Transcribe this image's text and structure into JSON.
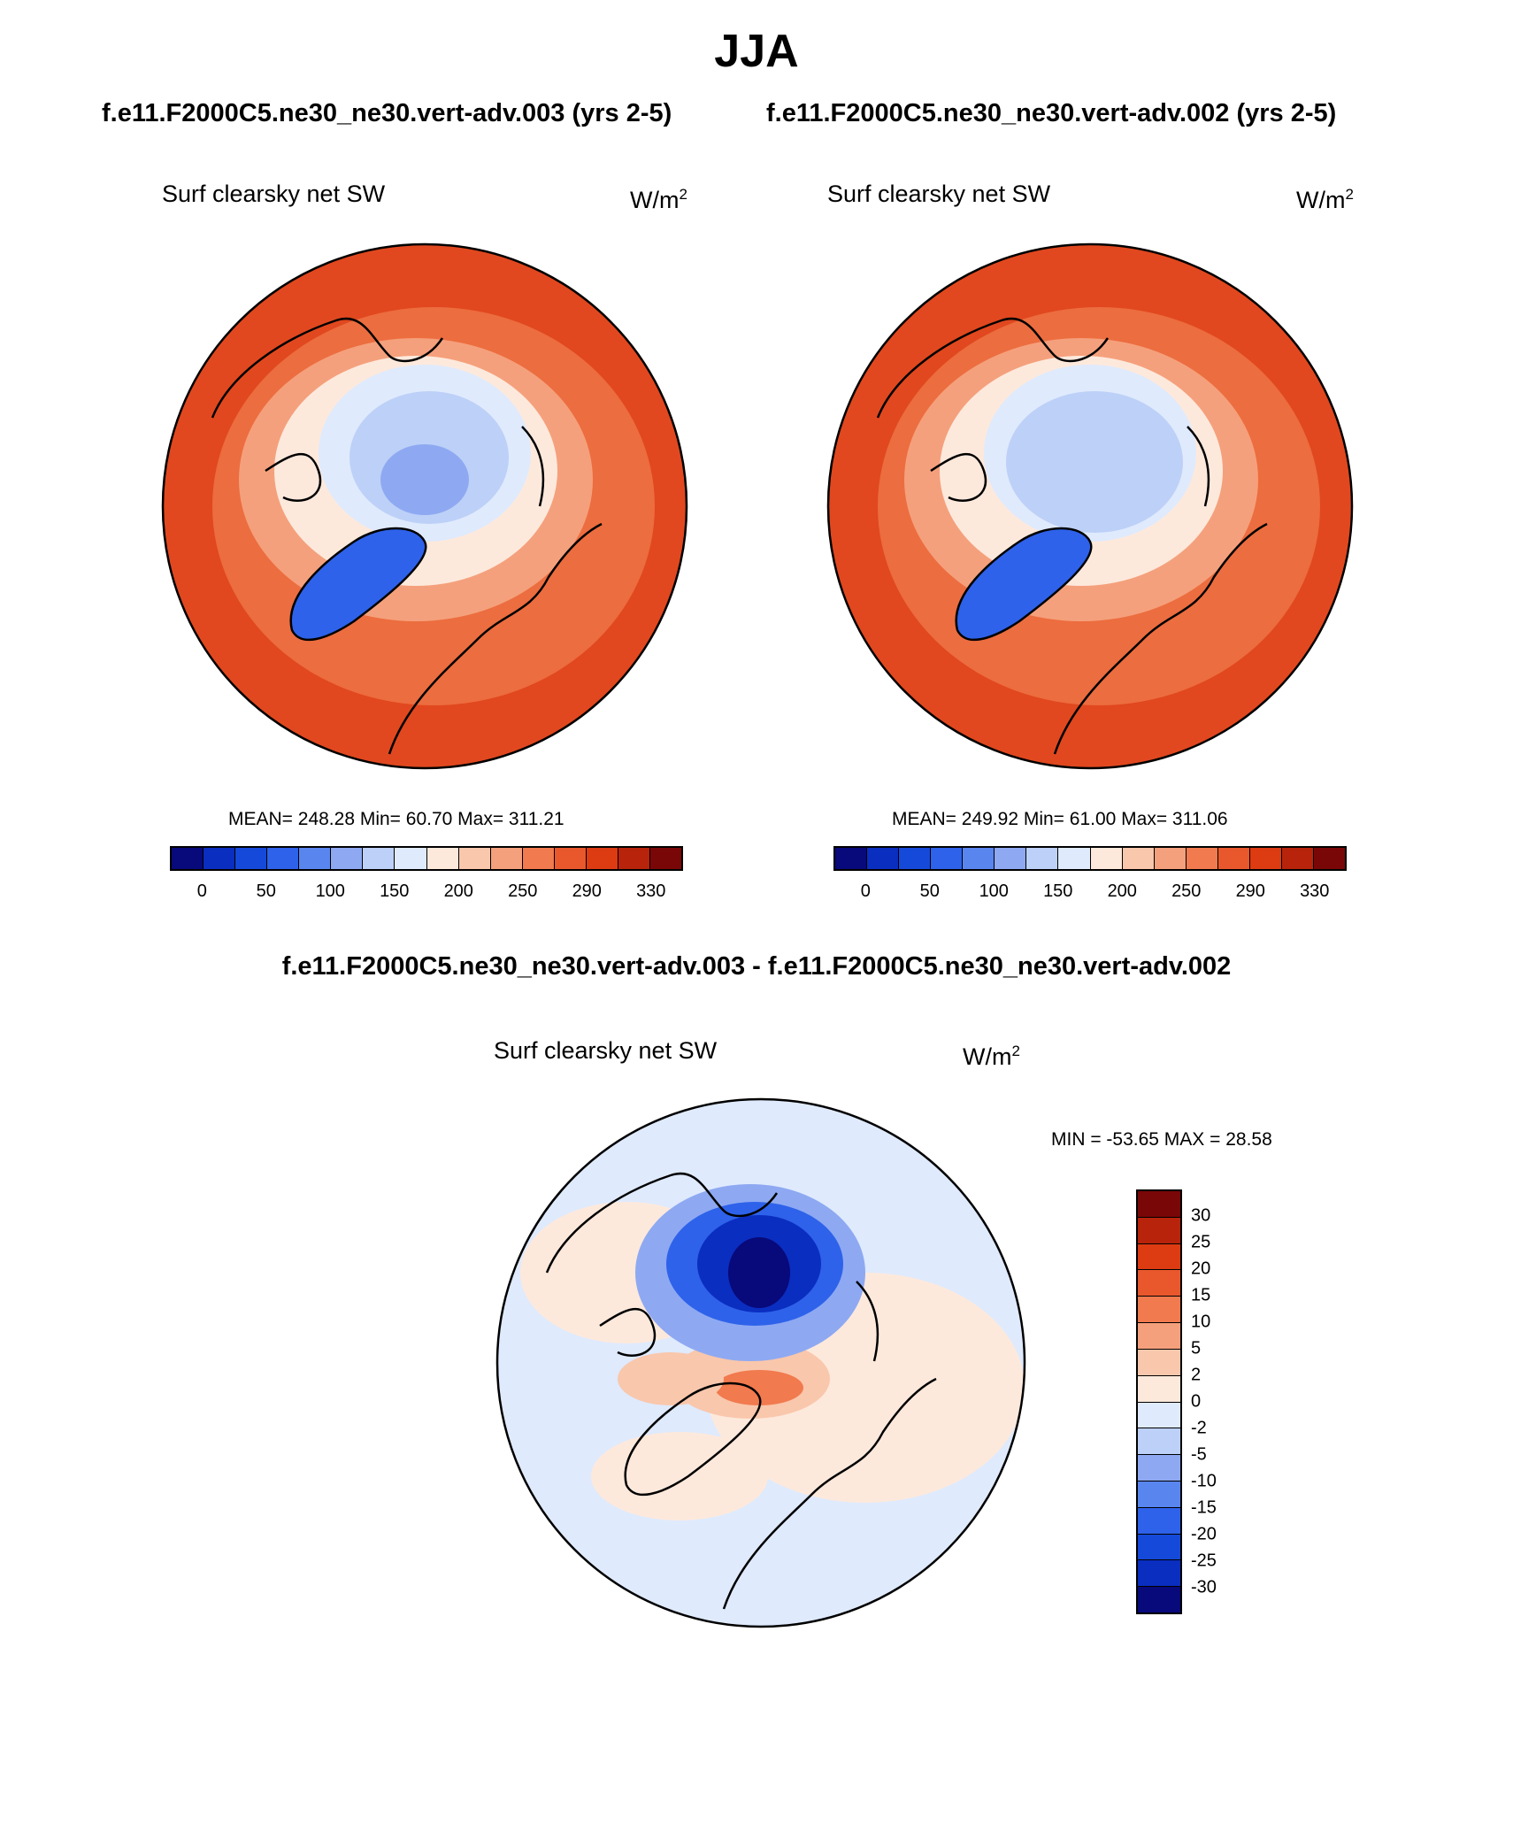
{
  "page": {
    "title": "JJA",
    "case_a_title": "f.e11.F2000C5.ne30_ne30.vert-adv.003 (yrs 2-5)",
    "case_b_title": "f.e11.F2000C5.ne30_ne30.vert-adv.002 (yrs 2-5)",
    "diff_title": "f.e11.F2000C5.ne30_ne30.vert-adv.003 - f.e11.F2000C5.ne30_ne30.vert-adv.002"
  },
  "panels": {
    "a": {
      "variable": "Surf clearsky net SW",
      "unit_base": "W/m",
      "unit_exp": "2",
      "stats": "MEAN= 248.28  Min=  60.70  Max= 311.21"
    },
    "b": {
      "variable": "Surf clearsky net SW",
      "unit_base": "W/m",
      "unit_exp": "2",
      "stats": "MEAN= 249.92  Min=  61.00  Max= 311.06"
    },
    "diff": {
      "variable": "Surf clearsky net SW",
      "unit_base": "W/m",
      "unit_exp": "2",
      "stats": "MIN = -53.65 MAX =  28.58"
    }
  },
  "colorbars": {
    "field_colors": [
      "#08097a",
      "#0a2ec0",
      "#1549da",
      "#2e62ea",
      "#5985ef",
      "#8ea9f2",
      "#bdd0f7",
      "#dfeafd",
      "#fde9dc",
      "#f9c7ac",
      "#f5a07c",
      "#f17a4e",
      "#e8582c",
      "#dd3b12",
      "#b8240b",
      "#7a0707"
    ],
    "field_ticks": [
      "0",
      "50",
      "100",
      "150",
      "200",
      "250",
      "290",
      "330"
    ],
    "diff_colors": [
      "#7a0707",
      "#b8240b",
      "#dd3b12",
      "#e8582c",
      "#f17a4e",
      "#f5a07c",
      "#f9c7ac",
      "#fde9dc",
      "#dfeafd",
      "#bdd0f7",
      "#8ea9f2",
      "#5985ef",
      "#2e62ea",
      "#1549da",
      "#0a2ec0",
      "#08097a"
    ],
    "diff_ticks": [
      "30",
      "25",
      "20",
      "15",
      "10",
      "5",
      "2",
      "0",
      "-2",
      "-5",
      "-10",
      "-15",
      "-20",
      "-25",
      "-30"
    ]
  },
  "map_colors": {
    "outer": "#e1481f",
    "mid": "#ec6d3f",
    "light_orange": "#f5a07c",
    "pale": "#fde9dc",
    "ice_light": "#dfeafd",
    "ice_mid": "#bdd0f7",
    "ice_blue": "#8ea9f2",
    "greenland": "#2e62ea",
    "diff_base": "#dfeafd",
    "diff_warm": "#fde9dc",
    "diff_warm2": "#f9c7ac",
    "diff_warm3": "#f17a4e",
    "diff_cold1": "#8ea9f2",
    "diff_cold2": "#2e62ea",
    "diff_cold3": "#0a2ec0",
    "diff_cold4": "#08097a"
  }
}
